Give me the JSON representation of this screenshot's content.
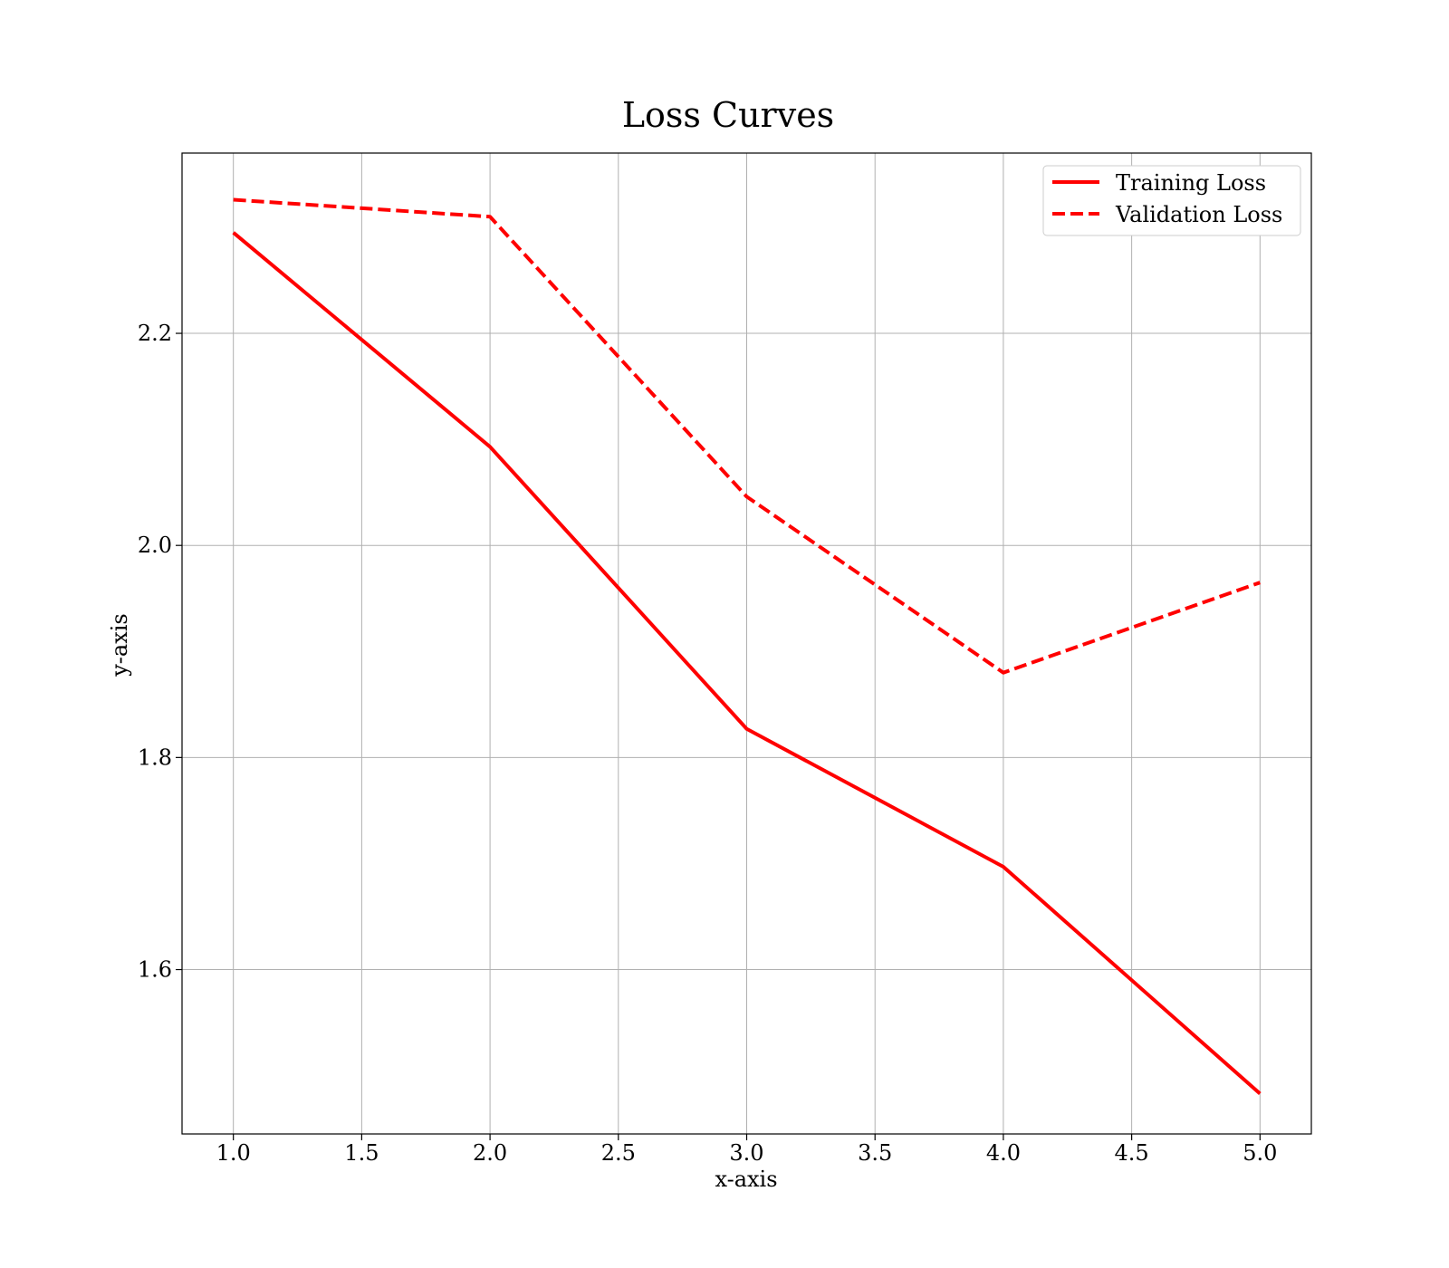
{
  "chart_data": {
    "type": "line",
    "title": "Loss Curves",
    "xlabel": "x-axis",
    "ylabel": "y-axis",
    "x": [
      1.0,
      2.0,
      3.0,
      4.0,
      5.0
    ],
    "xlim": [
      0.8,
      5.2
    ],
    "ylim": [
      1.445,
      2.37
    ],
    "xticks": [
      1.0,
      1.5,
      2.0,
      2.5,
      3.0,
      3.5,
      4.0,
      4.5,
      5.0
    ],
    "xtick_labels": [
      "1.0",
      "1.5",
      "2.0",
      "2.5",
      "3.0",
      "3.5",
      "4.0",
      "4.5",
      "5.0"
    ],
    "yticks": [
      1.6,
      1.8,
      2.0,
      2.2
    ],
    "ytick_labels": [
      "1.6",
      "1.8",
      "2.0",
      "2.2"
    ],
    "grid": true,
    "legend_position": "top-right",
    "series": [
      {
        "name": "Training Loss",
        "values": [
          2.295,
          2.093,
          1.827,
          1.697,
          1.483
        ],
        "color": "#ff0000",
        "style": "solid"
      },
      {
        "name": "Validation Loss",
        "values": [
          2.326,
          2.31,
          2.046,
          1.88,
          1.965
        ],
        "color": "#ff0000",
        "style": "dashed"
      }
    ]
  }
}
